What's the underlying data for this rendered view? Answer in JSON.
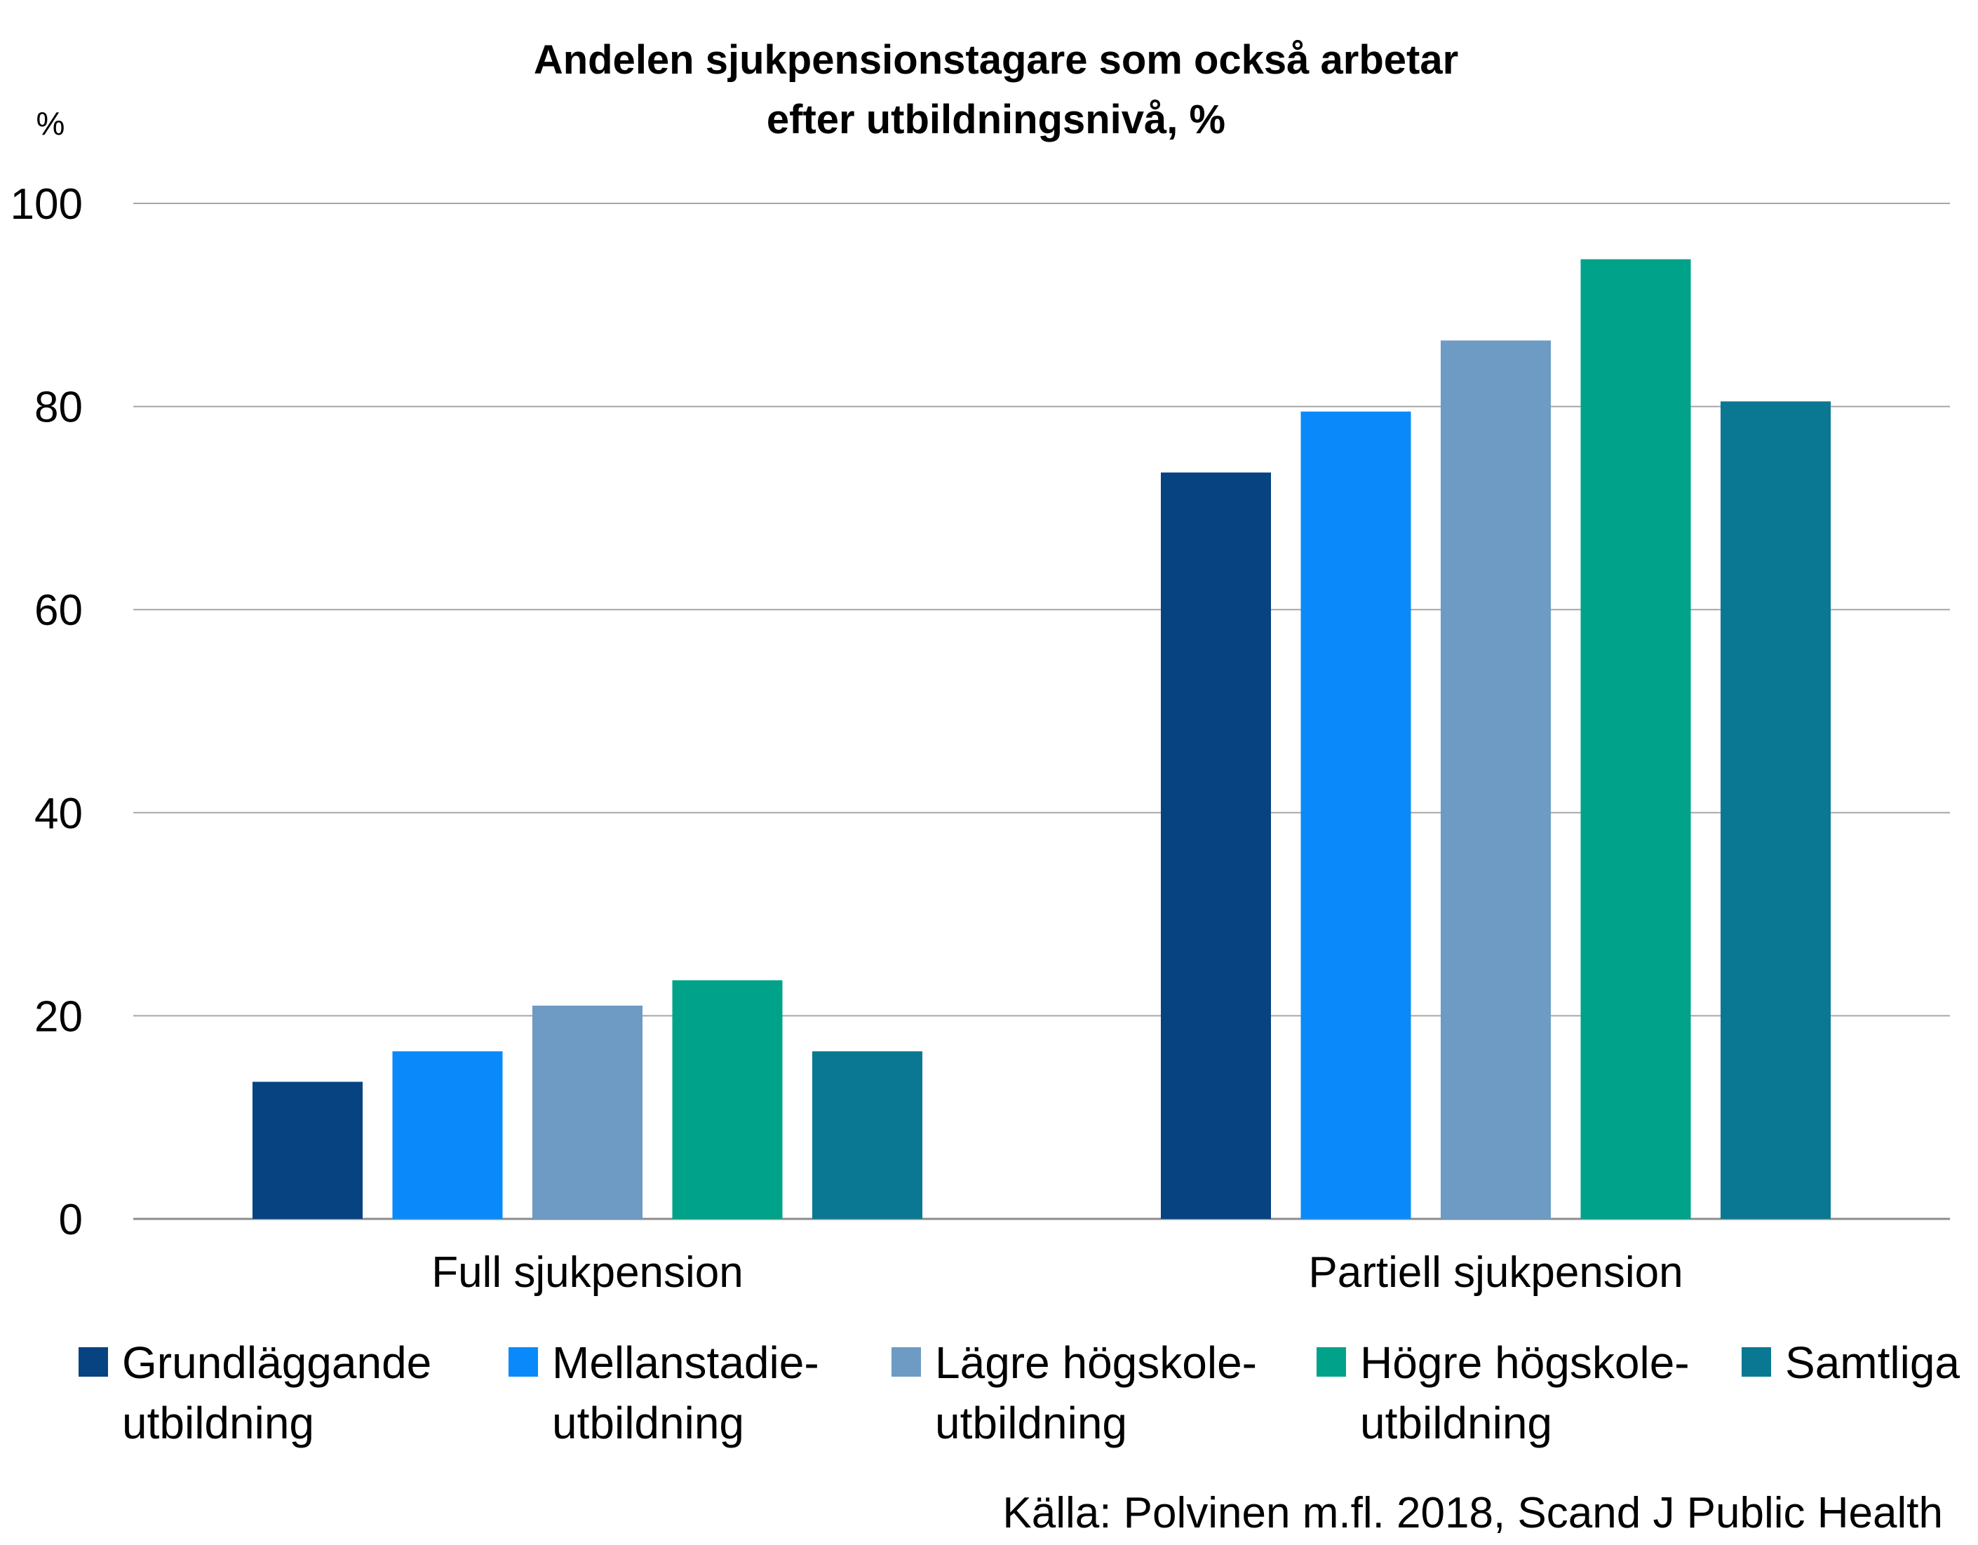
{
  "chart_data": {
    "type": "bar",
    "title": [
      "Andelen sjukpensionstagare som också arbetar",
      "efter utbildningsnivå, %"
    ],
    "ylabel": "%",
    "xlabel": "",
    "ylim": [
      0,
      100
    ],
    "yticks": [
      "0",
      "20",
      "40",
      "60",
      "80",
      "100"
    ],
    "ytick_values": [
      0,
      20,
      40,
      60,
      80,
      100
    ],
    "grid": true,
    "legend_position": "bottom",
    "categories": [
      "Full sjukpension",
      "Partiell sjukpension"
    ],
    "series": [
      {
        "name": [
          "Grundläggande",
          "utbildning"
        ],
        "color": "#064380",
        "values": [
          13.5,
          73.5
        ]
      },
      {
        "name": [
          "Mellanstadie-",
          "utbildning"
        ],
        "color": "#0a8afa",
        "values": [
          16.5,
          79.5
        ]
      },
      {
        "name": [
          "Lägre högskole-",
          "utbildning"
        ],
        "color": "#6d9bc3",
        "values": [
          21,
          86.5
        ]
      },
      {
        "name": [
          "Högre högskole-",
          "utbildning"
        ],
        "color": "#00a38a",
        "values": [
          23.5,
          94.5
        ]
      },
      {
        "name": [
          "Samtliga"
        ],
        "color": "#0a7893",
        "values": [
          16.5,
          80.5
        ]
      }
    ],
    "source": "Källa: Polvinen m.fl. 2018, Scand J Public Health"
  }
}
